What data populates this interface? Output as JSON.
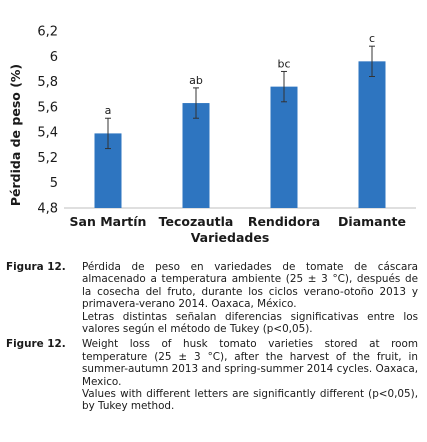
{
  "chart_data": {
    "type": "bar",
    "categories": [
      "San Martín",
      "Tecozautla",
      "Rendidora",
      "Diamante"
    ],
    "values": [
      5.39,
      5.63,
      5.76,
      5.96
    ],
    "errors": [
      0.12,
      0.12,
      0.12,
      0.12
    ],
    "letters": [
      "a",
      "ab",
      "bc",
      "c"
    ],
    "xlabel": "Variedades",
    "ylabel": "Pérdida de peso (%)",
    "ylim": [
      4.8,
      6.2
    ],
    "yticks": [
      "4,8",
      "5",
      "5,2",
      "5,4",
      "5,6",
      "5,8",
      "6",
      "6,2"
    ],
    "bar_color": "#2e75c0",
    "grid": false
  },
  "caption": {
    "es": {
      "label": "Figura 12.",
      "text": "Pérdida de peso en variedades de tomate de cáscara almacenado a temperatura ambiente (25 ± 3 °C), después de la cosecha del fruto, durante los ciclos verano-otoño 2013 y primavera-verano 2014. Oaxaca, México.",
      "note": "Letras distintas señalan diferencias significativas entre los valores según el método de Tukey (p<0,05)."
    },
    "en": {
      "label": "Figure 12.",
      "text": "Weight loss of husk tomato varieties stored at room temperature (25 ± 3 °C), after the harvest of the fruit, in summer-autumn 2013 and spring-summer 2014 cycles. Oaxaca, Mexico.",
      "note": "Values with different letters are significantly different (p<0,05), by Tukey method."
    }
  }
}
